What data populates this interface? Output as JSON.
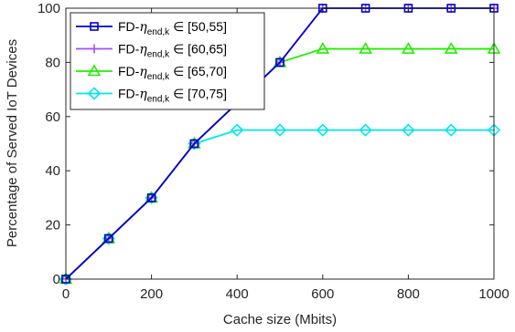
{
  "chart_data": {
    "type": "line",
    "xlabel": "Cache size (Mbits)",
    "ylabel": "Percentage of Served IoT Devices",
    "xlim": [
      0,
      1000
    ],
    "ylim": [
      0,
      100
    ],
    "xticks": [
      0,
      200,
      400,
      600,
      800,
      1000
    ],
    "yticks": [
      0,
      20,
      40,
      60,
      80,
      100
    ],
    "grid": false,
    "legend_position": "top-left",
    "x": [
      0,
      100,
      200,
      300,
      400,
      500,
      600,
      700,
      800,
      900,
      1000
    ],
    "series": [
      {
        "legend_prefix": "FD-",
        "legend_symbol": "η",
        "legend_subscript": "end,k",
        "legend_suffix": " ∈ [50,55]",
        "color": "#0000cc",
        "marker": "square",
        "values": [
          0,
          15,
          30,
          50,
          65,
          80,
          100,
          100,
          100,
          100,
          100
        ]
      },
      {
        "legend_prefix": "FD-",
        "legend_symbol": "η",
        "legend_subscript": "end,k",
        "legend_suffix": " ∈ [60,65]",
        "color": "#a64dff",
        "marker": "plus",
        "values": [
          0,
          15,
          30,
          50,
          65,
          80,
          100,
          100,
          100,
          100,
          100
        ]
      },
      {
        "legend_prefix": "FD-",
        "legend_symbol": "η",
        "legend_subscript": "end,k",
        "legend_suffix": " ∈ [65,70]",
        "color": "#22ee00",
        "marker": "triangle",
        "values": [
          0,
          15,
          30,
          50,
          65,
          80,
          85,
          85,
          85,
          85,
          85
        ]
      },
      {
        "legend_prefix": "FD-",
        "legend_symbol": "η",
        "legend_subscript": "end,k",
        "legend_suffix": " ∈ [70,75]",
        "color": "#00e5ee",
        "marker": "diamond",
        "values": [
          0,
          15,
          30,
          50,
          55,
          55,
          55,
          55,
          55,
          55,
          55
        ]
      }
    ]
  }
}
